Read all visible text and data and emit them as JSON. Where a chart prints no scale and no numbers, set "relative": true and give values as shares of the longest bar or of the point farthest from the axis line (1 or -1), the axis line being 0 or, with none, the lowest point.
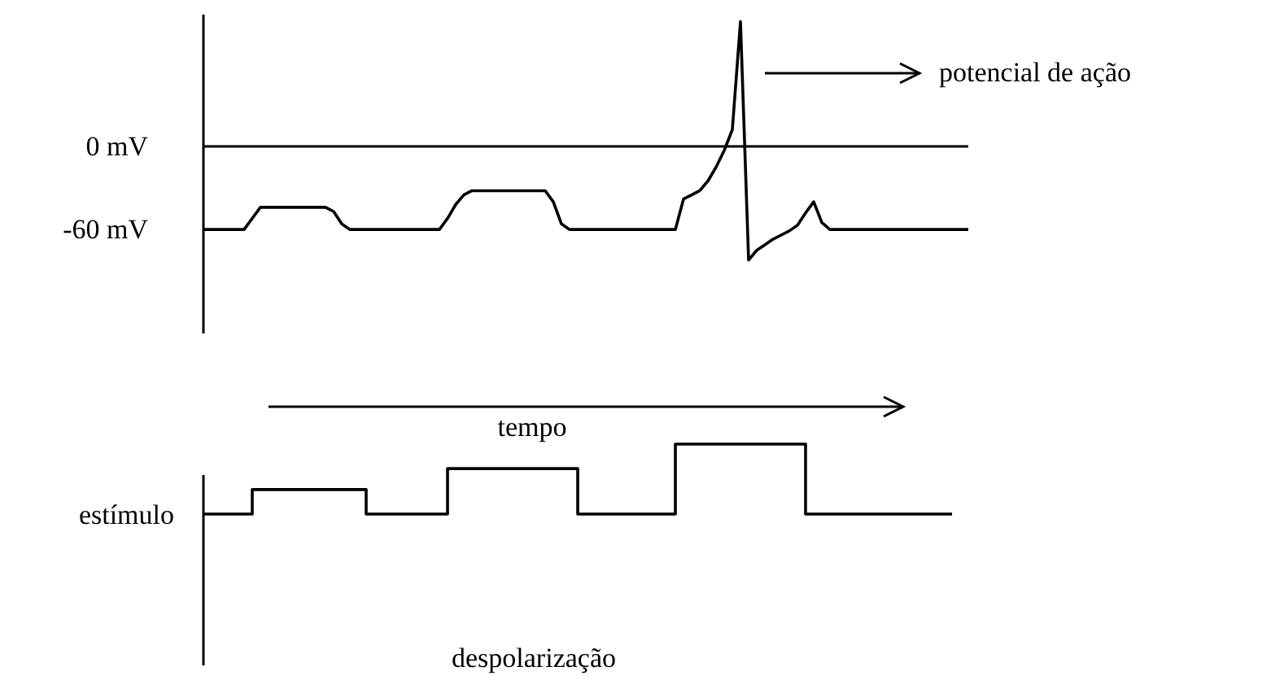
{
  "chart_data": [
    {
      "type": "line",
      "xlabel": "tempo",
      "categories": [
        null,
        null,
        null,
        null,
        null,
        null,
        null,
        null,
        null,
        null,
        null,
        null,
        null,
        null,
        null,
        null,
        null,
        null,
        null,
        null,
        null,
        null,
        null,
        null,
        null,
        null,
        null,
        null,
        null,
        null,
        null,
        null,
        null,
        null,
        null,
        null,
        null,
        null,
        null,
        null,
        null,
        null,
        null,
        null,
        null,
        null,
        null,
        null,
        null,
        null,
        null,
        null,
        null,
        null,
        null,
        null,
        null,
        null,
        null,
        null,
        null,
        null,
        null,
        null,
        null,
        null,
        null,
        null,
        null,
        null,
        null,
        null,
        null,
        null,
        null,
        null,
        null,
        null,
        null,
        null,
        null,
        null,
        null,
        null,
        null,
        null,
        null,
        null,
        null,
        null,
        null,
        null,
        null,
        null,
        null
      ],
      "series": [
        {
          "color": "#000000",
          "values": [
            -60,
            -60,
            -60,
            -60,
            -60,
            -60,
            -52,
            -44,
            -44,
            -44,
            -44,
            -44,
            -44,
            -44,
            -44,
            -44,
            -47,
            -56,
            -60,
            -60,
            -60,
            -60,
            -60,
            -60,
            -60,
            -60,
            -60,
            -60,
            -60,
            -60,
            -52,
            -42,
            -35,
            -32,
            -32,
            -32,
            -32,
            -32,
            -32,
            -32,
            -32,
            -32,
            -32,
            -40,
            -56,
            -60,
            -60,
            -60,
            -60,
            -60,
            -60,
            -60,
            -60,
            -60,
            -60,
            -60,
            -60,
            -60,
            -60,
            -38,
            -35,
            -32,
            -25,
            -15,
            -3,
            12,
            90,
            -82,
            -75,
            -71,
            -67,
            -64,
            -61,
            -57,
            -48,
            -40,
            -55,
            -60,
            -60,
            -60,
            -60,
            -60,
            -60,
            -60,
            -60,
            -60,
            -60,
            -60,
            -60,
            -60,
            -60,
            -60,
            -60,
            -60,
            -60
          ]
        }
      ],
      "ylim": [
        -135,
        95
      ],
      "yticks": [
        {
          "value": 0,
          "label": "0 mV"
        },
        {
          "value": -60,
          "label": "-60 mV"
        }
      ],
      "ref_lines": [
        {
          "axis": "y",
          "value": 0,
          "color": "#000000"
        }
      ],
      "annotations": [
        "potencial de ação"
      ],
      "tick_labels": "y"
    },
    {
      "type": "step",
      "relative": true,
      "ylabel": "estímulo",
      "xlabel": "despolarização",
      "categories": [
        null,
        null,
        null,
        null,
        null,
        null,
        null,
        null,
        null,
        null,
        null,
        null,
        null,
        null,
        null,
        null,
        null,
        null,
        null,
        null,
        null,
        null,
        null,
        null,
        null,
        null,
        null,
        null,
        null,
        null,
        null,
        null,
        null,
        null,
        null,
        null,
        null,
        null,
        null,
        null,
        null,
        null,
        null,
        null,
        null,
        null,
        null
      ],
      "series": [
        {
          "color": "#000000",
          "values": [
            0,
            0,
            0,
            0.35,
            0.35,
            0.35,
            0.35,
            0.35,
            0.35,
            0.35,
            0,
            0,
            0,
            0,
            0,
            0.65,
            0.65,
            0.65,
            0.65,
            0.65,
            0.65,
            0.65,
            0.65,
            0,
            0,
            0,
            0,
            0,
            0,
            1,
            1,
            1,
            1,
            1,
            1,
            1,
            1,
            0,
            0,
            0,
            0,
            0,
            0,
            0,
            0,
            0,
            0
          ]
        }
      ]
    }
  ]
}
